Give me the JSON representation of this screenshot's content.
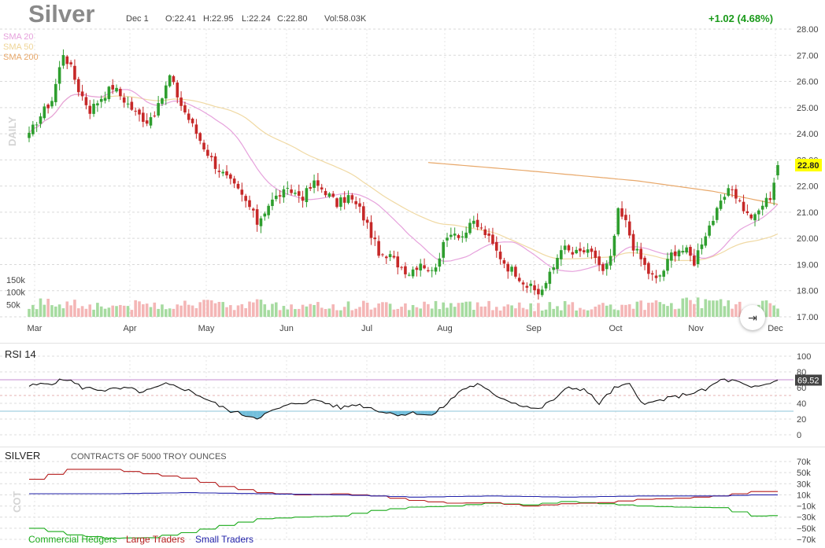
{
  "header": {
    "title": "Silver",
    "date": "Dec 1",
    "open": "O:22.41",
    "high": "H:22.95",
    "low": "L:22.24",
    "close": "C:22.80",
    "volume": "Vol:58.03K",
    "change": "+1.02 (4.68%)"
  },
  "overlays": {
    "sma20": "SMA 20",
    "sma50": "SMA 50",
    "sma200": "SMA 200",
    "daily_label": "DAILY"
  },
  "colors": {
    "up": "#2e9e2e",
    "down": "#c62828",
    "vol_up": "#a6dba0",
    "vol_down": "#f4b6b6",
    "sma20": "#e6a1dc",
    "sma50": "#f0d9a3",
    "sma200": "#e8a86a",
    "rsi": "#111111",
    "commercial": "#1aaa1a",
    "large": "#b51c1c",
    "small": "#2222aa"
  },
  "go_to_end_icon": "arrow-right-to-bar-icon",
  "chart_data": [
    {
      "type": "candlestick",
      "title": "Silver",
      "ylim": [
        17,
        28
      ],
      "y_ticks": [
        "28.00",
        "27.00",
        "26.00",
        "25.00",
        "24.00",
        "23.00",
        "22.00",
        "21.00",
        "20.00",
        "19.00",
        "18.00",
        "17.00"
      ],
      "last_price_label": "22.80",
      "x_ticks": [
        "Mar",
        "Apr",
        "May",
        "Jun",
        "Jul",
        "Aug",
        "Sep",
        "Oct",
        "Nov",
        "Dec"
      ],
      "vol_ticks": [
        "150k",
        "100k",
        "50k"
      ],
      "vol_ylim": [
        0,
        200
      ],
      "price_keypoints": [
        [
          0,
          23.9
        ],
        [
          2,
          24.5
        ],
        [
          6,
          25.3
        ],
        [
          9,
          27.1
        ],
        [
          11,
          26.5
        ],
        [
          13,
          25.7
        ],
        [
          16,
          24.9
        ],
        [
          19,
          25.4
        ],
        [
          22,
          25.8
        ],
        [
          25,
          25.3
        ],
        [
          28,
          24.8
        ],
        [
          31,
          24.5
        ],
        [
          34,
          25.0
        ],
        [
          37,
          26.2
        ],
        [
          40,
          25.1
        ],
        [
          43,
          24.3
        ],
        [
          46,
          23.5
        ],
        [
          49,
          22.8
        ],
        [
          52,
          22.3
        ],
        [
          55,
          21.8
        ],
        [
          58,
          21.2
        ],
        [
          60,
          20.6
        ],
        [
          63,
          21.3
        ],
        [
          66,
          21.7
        ],
        [
          69,
          21.8
        ],
        [
          72,
          21.6
        ],
        [
          75,
          22.1
        ],
        [
          78,
          21.8
        ],
        [
          81,
          21.3
        ],
        [
          84,
          21.6
        ],
        [
          87,
          21.1
        ],
        [
          89,
          20.5
        ],
        [
          91,
          19.8
        ],
        [
          93,
          19.2
        ],
        [
          95,
          19.3
        ],
        [
          98,
          18.9
        ],
        [
          100,
          18.7
        ],
        [
          103,
          19.1
        ],
        [
          106,
          18.7
        ],
        [
          109,
          19.7
        ],
        [
          111,
          20.3
        ],
        [
          114,
          20.1
        ],
        [
          117,
          20.6
        ],
        [
          120,
          20.2
        ],
        [
          123,
          19.5
        ],
        [
          126,
          18.9
        ],
        [
          128,
          18.7
        ],
        [
          131,
          18.2
        ],
        [
          134,
          17.9
        ],
        [
          136,
          18.3
        ],
        [
          138,
          18.9
        ],
        [
          140,
          19.7
        ],
        [
          143,
          19.4
        ],
        [
          146,
          19.5
        ],
        [
          149,
          19.3
        ],
        [
          151,
          18.7
        ],
        [
          153,
          19.2
        ],
        [
          155,
          21.0
        ],
        [
          157,
          20.6
        ],
        [
          159,
          19.7
        ],
        [
          161,
          19.2
        ],
        [
          163,
          18.7
        ],
        [
          165,
          18.4
        ],
        [
          167,
          18.8
        ],
        [
          169,
          19.4
        ],
        [
          171,
          19.6
        ],
        [
          173,
          19.5
        ],
        [
          175,
          19.1
        ],
        [
          177,
          19.9
        ],
        [
          179,
          20.5
        ],
        [
          181,
          21.0
        ],
        [
          183,
          21.6
        ],
        [
          185,
          21.9
        ],
        [
          187,
          21.4
        ],
        [
          189,
          20.9
        ],
        [
          191,
          20.8
        ],
        [
          193,
          21.3
        ],
        [
          195,
          21.6
        ],
        [
          197,
          22.8
        ]
      ],
      "volume_keypoints": [
        [
          0,
          55
        ],
        [
          10,
          60
        ],
        [
          20,
          45
        ],
        [
          30,
          50
        ],
        [
          40,
          55
        ],
        [
          50,
          45
        ],
        [
          60,
          50
        ],
        [
          70,
          40
        ],
        [
          80,
          45
        ],
        [
          90,
          50
        ],
        [
          100,
          45
        ],
        [
          110,
          55
        ],
        [
          120,
          45
        ],
        [
          130,
          40
        ],
        [
          140,
          45
        ],
        [
          150,
          40
        ],
        [
          160,
          45
        ],
        [
          170,
          55
        ],
        [
          180,
          55
        ],
        [
          190,
          45
        ],
        [
          197,
          50
        ]
      ],
      "sma200_keypoints": [
        [
          105,
          22.9
        ],
        [
          130,
          22.6
        ],
        [
          160,
          22.2
        ],
        [
          180,
          21.8
        ],
        [
          197,
          21.3
        ]
      ]
    },
    {
      "type": "line",
      "title": "RSI 14",
      "ylim": [
        0,
        100
      ],
      "y_ticks": [
        "100",
        "80",
        "60",
        "40",
        "20",
        "0"
      ],
      "bands": [
        30,
        70
      ],
      "last_value_label": "69.52",
      "rsi_keypoints": [
        [
          0,
          62
        ],
        [
          6,
          66
        ],
        [
          10,
          71
        ],
        [
          14,
          60
        ],
        [
          20,
          57
        ],
        [
          26,
          59
        ],
        [
          30,
          54
        ],
        [
          36,
          64
        ],
        [
          40,
          60
        ],
        [
          44,
          52
        ],
        [
          48,
          42
        ],
        [
          52,
          32
        ],
        [
          56,
          26
        ],
        [
          60,
          22
        ],
        [
          62,
          26
        ],
        [
          66,
          34
        ],
        [
          70,
          40
        ],
        [
          76,
          44
        ],
        [
          82,
          34
        ],
        [
          86,
          39
        ],
        [
          90,
          34
        ],
        [
          94,
          28
        ],
        [
          98,
          26
        ],
        [
          102,
          28
        ],
        [
          106,
          24
        ],
        [
          110,
          40
        ],
        [
          114,
          58
        ],
        [
          118,
          64
        ],
        [
          122,
          52
        ],
        [
          128,
          40
        ],
        [
          134,
          32
        ],
        [
          138,
          45
        ],
        [
          142,
          60
        ],
        [
          146,
          58
        ],
        [
          150,
          40
        ],
        [
          154,
          59
        ],
        [
          158,
          64
        ],
        [
          162,
          38
        ],
        [
          166,
          44
        ],
        [
          170,
          48
        ],
        [
          174,
          53
        ],
        [
          178,
          57
        ],
        [
          182,
          70
        ],
        [
          186,
          68
        ],
        [
          190,
          59
        ],
        [
          194,
          64
        ],
        [
          197,
          69.5
        ]
      ]
    },
    {
      "type": "line",
      "title": "SILVER",
      "subtitle": "CONTRACTS OF 5000 TROY OUNCES",
      "side_label": "COT",
      "ylim": [
        -70,
        70
      ],
      "y_ticks": [
        "70k",
        "50k",
        "30k",
        "10k",
        "−10k",
        "−30k",
        "−50k",
        "−70k"
      ],
      "y_tick_values": [
        70,
        50,
        30,
        10,
        -10,
        -30,
        -50,
        -70
      ],
      "series": [
        {
          "name": "Commercial Hedgers",
          "keypoints": [
            [
              0,
              -50
            ],
            [
              10,
              -62
            ],
            [
              20,
              -68
            ],
            [
              30,
              -67
            ],
            [
              40,
              -58
            ],
            [
              50,
              -45
            ],
            [
              60,
              -33
            ],
            [
              70,
              -30
            ],
            [
              80,
              -28
            ],
            [
              90,
              -18
            ],
            [
              100,
              -12
            ],
            [
              110,
              -10
            ],
            [
              120,
              -5
            ],
            [
              130,
              -8
            ],
            [
              140,
              -2
            ],
            [
              150,
              -6
            ],
            [
              160,
              -10
            ],
            [
              170,
              -12
            ],
            [
              180,
              -13
            ],
            [
              190,
              -28
            ],
            [
              197,
              -27
            ]
          ]
        },
        {
          "name": "Large Traders",
          "keypoints": [
            [
              0,
              38
            ],
            [
              10,
              56
            ],
            [
              20,
              56
            ],
            [
              30,
              48
            ],
            [
              40,
              40
            ],
            [
              50,
              25
            ],
            [
              60,
              14
            ],
            [
              70,
              10
            ],
            [
              80,
              12
            ],
            [
              90,
              8
            ],
            [
              100,
              0
            ],
            [
              110,
              -5
            ],
            [
              120,
              -4
            ],
            [
              130,
              -10
            ],
            [
              140,
              -6
            ],
            [
              150,
              -4
            ],
            [
              160,
              2
            ],
            [
              170,
              4
            ],
            [
              180,
              8
            ],
            [
              190,
              16
            ],
            [
              197,
              16
            ]
          ]
        },
        {
          "name": "Small Traders",
          "keypoints": [
            [
              0,
              12
            ],
            [
              20,
              12
            ],
            [
              40,
              14
            ],
            [
              60,
              12
            ],
            [
              80,
              10
            ],
            [
              100,
              6
            ],
            [
              120,
              8
            ],
            [
              140,
              6
            ],
            [
              160,
              8
            ],
            [
              180,
              8
            ],
            [
              190,
              10
            ],
            [
              197,
              10
            ]
          ]
        }
      ]
    }
  ]
}
